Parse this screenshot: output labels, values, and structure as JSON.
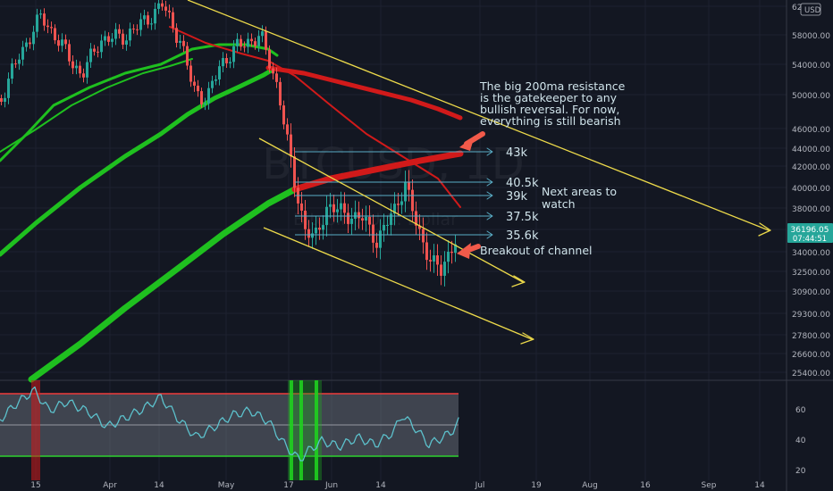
{
  "chart_data": {
    "type": "candlestick",
    "title": "BTCUSD, 1D",
    "subtitle": "Bitcoin / U.S. Dollar",
    "currency": "USD",
    "last_price": "36196.05",
    "countdown": "07:44:51",
    "x_ticks": [
      "15",
      "Apr",
      "14",
      "May",
      "17",
      "Jun",
      "14",
      "Jul",
      "19",
      "Aug",
      "16",
      "Sep",
      "14"
    ],
    "y_ticks": [
      "62",
      "58000.00",
      "54000.00",
      "50000.00",
      "46000.00",
      "44000.00",
      "42000.00",
      "40000.00",
      "38000.00",
      "36000.00",
      "34000.00",
      "32500.00",
      "30900.00",
      "29300.00",
      "27800.00",
      "26600.00",
      "25400.00"
    ],
    "osc_ticks": [
      "60",
      "40",
      "20"
    ],
    "levels": [
      {
        "label": "43k",
        "value": 43000
      },
      {
        "label": "40.5k",
        "value": 40500
      },
      {
        "label": "39k",
        "value": 39000
      },
      {
        "label": "37.5k",
        "value": 37500
      },
      {
        "label": "35.6k",
        "value": 35600
      }
    ],
    "annotations": {
      "resistance_note": [
        "The big 200ma resistance",
        "is the gatekeeper to any",
        "bullish reversal. For now,",
        "everything is still bearish"
      ],
      "areas_note": [
        "Next areas to",
        "watch"
      ],
      "breakout_note": "Breakout of channel"
    },
    "colors": {
      "background": "#131722",
      "up": "#26a69a",
      "down": "#ef5350",
      "ma_bull": "#1fc01f",
      "ma_bear": "#d11a1a",
      "trendline": "#ecd94a",
      "annotation": "#cfe3ea",
      "oscillator": "#5cc1cc",
      "price_badge": "#26a69a"
    }
  }
}
